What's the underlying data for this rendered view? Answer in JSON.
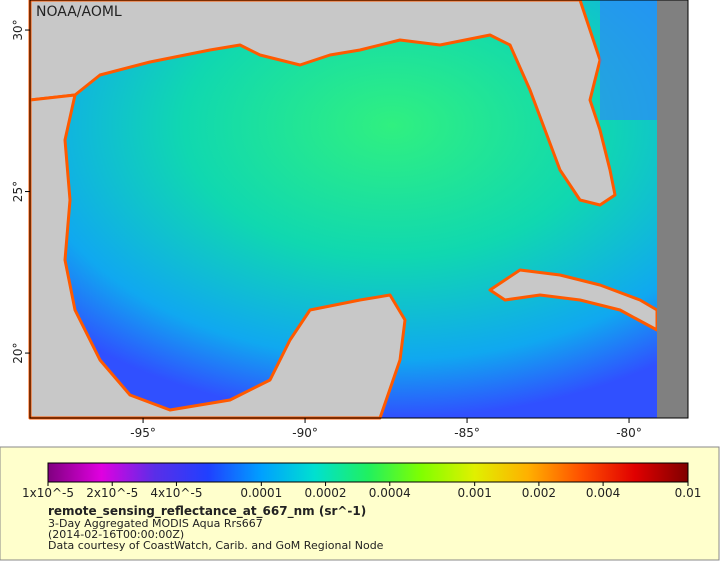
{
  "map": {
    "watermark": "NOAA/AOML",
    "xlim": [
      -98.49,
      -78.18
    ],
    "ylim": [
      17.99,
      30.93
    ],
    "xticks": [
      {
        "value": -95,
        "label": "-95°"
      },
      {
        "value": -90,
        "label": "-90°"
      },
      {
        "value": -85,
        "label": "-85°"
      },
      {
        "value": -80,
        "label": "-80°"
      }
    ],
    "yticks": [
      {
        "value": 30,
        "label": "30°"
      },
      {
        "value": 25,
        "label": "25°"
      },
      {
        "value": 20,
        "label": "20°"
      }
    ]
  },
  "legend": {
    "log_scale": true,
    "range": [
      1e-05,
      0.01
    ],
    "colors": [
      "#800080",
      "#e000e0",
      "#5a2ee8",
      "#2040ff",
      "#00a0ff",
      "#00e0d0",
      "#20f060",
      "#80ff00",
      "#e0f000",
      "#ffb000",
      "#ff5000",
      "#e00000",
      "#800000"
    ],
    "ticks": [
      {
        "value": 1e-05,
        "label": "1x10^-5"
      },
      {
        "value": 2e-05,
        "label": "2x10^-5"
      },
      {
        "value": 4e-05,
        "label": "4x10^-5"
      },
      0.0001,
      0.0002,
      0.0004,
      0.001,
      0.002,
      0.004,
      0.01
    ],
    "title": "remote_sensing_reflectance_at_667_nm (sr^-1)",
    "lines": [
      "3-Day Aggregated MODIS Aqua Rrs667",
      "(2014-02-16T00:00:00Z)",
      "Data courtesy of CoastWatch, Carib. and GoM Regional Node"
    ]
  }
}
